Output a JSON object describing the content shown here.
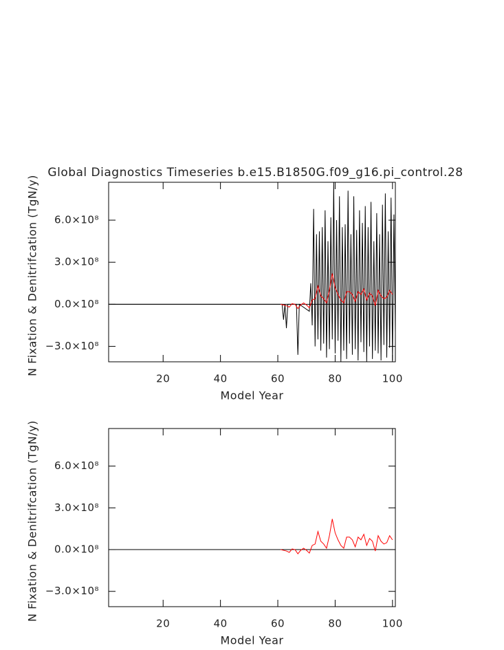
{
  "chart_data": [
    {
      "type": "line",
      "title": "Global Diagnostics Timeseries b.e15.B1850G.f09_g16.pi_control.28",
      "xlabel": "Model Year",
      "ylabel": "N Fixation & Denitrifcation (TgN/y)",
      "xlim": [
        1,
        101
      ],
      "ylim": [
        -410000000.0,
        870000000.0
      ],
      "xticks": [
        20,
        40,
        60,
        80,
        100
      ],
      "yticks": [
        {
          "value": -300000000.0,
          "label": "−3.0×10⁸"
        },
        {
          "value": 0,
          "label": "0.0×10⁸"
        },
        {
          "value": 300000000.0,
          "label": "3.0×10⁸"
        },
        {
          "value": 600000000.0,
          "label": "6.0×10⁸"
        }
      ],
      "reference_line": 0,
      "series": [
        {
          "color": "#000000",
          "x": [
            1,
            61.5,
            62,
            62.5,
            63,
            63.5,
            66.5,
            67,
            67.5,
            71,
            71.5,
            72,
            72.5,
            73,
            73.5,
            74,
            74.5,
            75,
            75.5,
            76,
            76.5,
            77,
            77.5,
            78,
            78.5,
            79,
            79.5,
            80,
            80.5,
            81,
            81.5,
            82,
            82.5,
            83,
            83.5,
            84,
            84.5,
            85,
            85.5,
            86,
            86.5,
            87,
            87.5,
            88,
            88.5,
            89,
            89.5,
            90,
            90.5,
            91,
            91.5,
            92,
            92.5,
            93,
            93.5,
            94,
            94.5,
            95,
            95.5,
            96,
            96.5,
            97,
            97.5,
            98,
            98.5,
            99,
            99.5,
            100,
            100.5,
            101
          ],
          "values": [
            0,
            0,
            -110000000.0,
            0,
            -170000000.0,
            0,
            0,
            -360000000.0,
            0,
            -50000000.0,
            150000000.0,
            -150000000.0,
            680000000.0,
            -300000000.0,
            500000000.0,
            -250000000.0,
            520000000.0,
            -330000000.0,
            550000000.0,
            -280000000.0,
            670000000.0,
            -380000000.0,
            450000000.0,
            -320000000.0,
            620000000.0,
            -250000000.0,
            870000000.0,
            -350000000.0,
            600000000.0,
            -260000000.0,
            770000000.0,
            -410000000.0,
            550000000.0,
            -330000000.0,
            570000000.0,
            -390000000.0,
            810000000.0,
            -280000000.0,
            500000000.0,
            -360000000.0,
            770000000.0,
            -320000000.0,
            530000000.0,
            -400000000.0,
            670000000.0,
            -270000000.0,
            580000000.0,
            -340000000.0,
            700000000.0,
            -410000000.0,
            550000000.0,
            -300000000.0,
            730000000.0,
            -390000000.0,
            450000000.0,
            -330000000.0,
            650000000.0,
            -350000000.0,
            500000000.0,
            -400000000.0,
            710000000.0,
            -290000000.0,
            790000000.0,
            -380000000.0,
            520000000.0,
            -310000000.0,
            760000000.0,
            -400000000.0,
            640000000.0,
            -200000000.0
          ]
        },
        {
          "color": "#ff0000",
          "x": [
            61,
            62,
            63,
            64,
            65,
            66,
            67,
            68,
            69,
            70,
            71,
            72,
            73,
            74,
            75,
            76,
            77,
            78,
            79,
            80,
            81,
            82,
            83,
            84,
            85,
            86,
            87,
            88,
            89,
            90,
            91,
            92,
            93,
            94,
            95,
            96,
            97,
            98,
            99,
            100
          ],
          "values": [
            0,
            -5000000.0,
            -10000000.0,
            -20000000.0,
            5000000.0,
            0,
            -30000000.0,
            -5000000.0,
            10000000.0,
            -5000000.0,
            -25000000.0,
            30000000.0,
            40000000.0,
            130000000.0,
            60000000.0,
            40000000.0,
            10000000.0,
            100000000.0,
            220000000.0,
            120000000.0,
            70000000.0,
            30000000.0,
            10000000.0,
            90000000.0,
            90000000.0,
            70000000.0,
            20000000.0,
            90000000.0,
            70000000.0,
            110000000.0,
            30000000.0,
            80000000.0,
            60000000.0,
            -10000000.0,
            100000000.0,
            60000000.0,
            40000000.0,
            50000000.0,
            100000000.0,
            70000000.0
          ]
        }
      ]
    },
    {
      "type": "line",
      "xlabel": "Model Year",
      "ylabel": "N Fixation & Denitrifcation (TgN/y)",
      "xlim": [
        1,
        101
      ],
      "ylim": [
        -410000000.0,
        870000000.0
      ],
      "xticks": [
        20,
        40,
        60,
        80,
        100
      ],
      "yticks": [
        {
          "value": -300000000.0,
          "label": "−3.0×10⁸"
        },
        {
          "value": 0,
          "label": "0.0×10⁸"
        },
        {
          "value": 300000000.0,
          "label": "3.0×10⁸"
        },
        {
          "value": 600000000.0,
          "label": "6.0×10⁸"
        }
      ],
      "reference_line": 0,
      "series": [
        {
          "color": "#ff0000",
          "x": [
            61,
            62,
            63,
            64,
            65,
            66,
            67,
            68,
            69,
            70,
            71,
            72,
            73,
            74,
            75,
            76,
            77,
            78,
            79,
            80,
            81,
            82,
            83,
            84,
            85,
            86,
            87,
            88,
            89,
            90,
            91,
            92,
            93,
            94,
            95,
            96,
            97,
            98,
            99,
            100
          ],
          "values": [
            0,
            -5000000.0,
            -10000000.0,
            -20000000.0,
            5000000.0,
            0,
            -30000000.0,
            -5000000.0,
            10000000.0,
            -5000000.0,
            -25000000.0,
            30000000.0,
            40000000.0,
            130000000.0,
            60000000.0,
            40000000.0,
            10000000.0,
            100000000.0,
            220000000.0,
            120000000.0,
            70000000.0,
            30000000.0,
            10000000.0,
            90000000.0,
            90000000.0,
            70000000.0,
            20000000.0,
            90000000.0,
            70000000.0,
            110000000.0,
            30000000.0,
            80000000.0,
            60000000.0,
            -10000000.0,
            100000000.0,
            60000000.0,
            40000000.0,
            50000000.0,
            100000000.0,
            70000000.0
          ]
        }
      ]
    }
  ]
}
